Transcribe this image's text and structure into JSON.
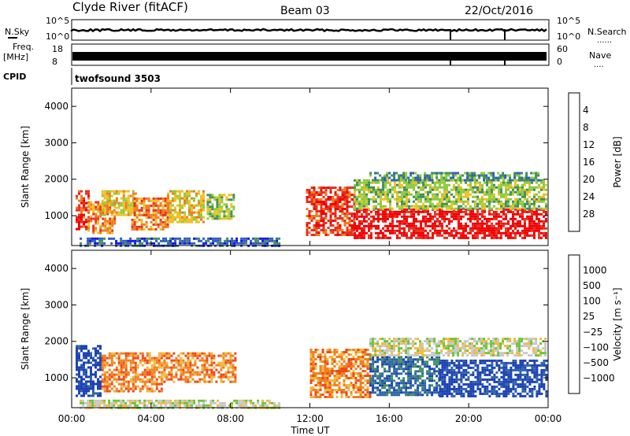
{
  "header": {
    "title": "Clyde River (fitACF)",
    "beam": "Beam 03",
    "date": "22/Oct/2016"
  },
  "strip_labels": {
    "nsky": "N.Sky",
    "nsearch": "N.Search",
    "freq": "Freq.",
    "freq_unit": "[MHz]",
    "nave": "Nave",
    "cpid": "CPID",
    "cpid_value": "twofsound 3503",
    "dotted": "......",
    "dotted_short": "...."
  },
  "strip_ticks": {
    "noise_left": [
      "10^5",
      "10^0"
    ],
    "noise_right": [
      "10^5",
      "10^0"
    ],
    "freq_left": [
      "18",
      "8"
    ],
    "nave_right": [
      "60",
      "0"
    ]
  },
  "chart_data": [
    {
      "type": "heatmap",
      "panel": "power",
      "ylabel": "Slant Range [km]",
      "xlabel": "",
      "x_ticks": [
        "00:00",
        "04:00",
        "08:00",
        "12:00",
        "16:00",
        "20:00",
        "00:00"
      ],
      "y_ticks": [
        1000,
        2000,
        3000,
        4000
      ],
      "x_range_hours": [
        0,
        24
      ],
      "y_range_km": [
        180,
        4500
      ],
      "colorbar": {
        "label": "Power [dB]",
        "ticks": [
          "4",
          "8",
          "12",
          "16",
          "20",
          "24",
          "28"
        ],
        "colors": [
          "#1414e6",
          "#2f5cbf",
          "#3f8f5a",
          "#8fca3c",
          "#f0c020",
          "#f07a20",
          "#e83020",
          "#f00000"
        ]
      },
      "regions": [
        {
          "t0": 0.2,
          "t1": 0.8,
          "r0": 600,
          "r1": 1700,
          "level": 6
        },
        {
          "t0": 0.8,
          "t1": 2.2,
          "r0": 500,
          "r1": 1400,
          "level": 5
        },
        {
          "t0": 1.5,
          "t1": 3.2,
          "r0": 1000,
          "r1": 1700,
          "level": 4
        },
        {
          "t0": 3.0,
          "t1": 4.8,
          "r0": 650,
          "r1": 1500,
          "level": 5
        },
        {
          "t0": 4.8,
          "t1": 6.6,
          "r0": 800,
          "r1": 1700,
          "level": 4
        },
        {
          "t0": 6.8,
          "t1": 8.2,
          "r0": 900,
          "r1": 1600,
          "level": 3
        },
        {
          "t0": 11.8,
          "t1": 14.2,
          "r0": 500,
          "r1": 1800,
          "level": 6
        },
        {
          "t0": 14.2,
          "t1": 23.9,
          "r0": 400,
          "r1": 1200,
          "level": 7
        },
        {
          "t0": 14.2,
          "t1": 23.9,
          "r0": 1200,
          "r1": 2000,
          "level": 3
        },
        {
          "t0": 15.0,
          "t1": 23.5,
          "r0": 2000,
          "r1": 2200,
          "level": 2
        },
        {
          "t0": 0.4,
          "t1": 10.5,
          "r0": 200,
          "r1": 400,
          "level": 1
        }
      ]
    },
    {
      "type": "heatmap",
      "panel": "velocity",
      "ylabel": "Slant Range [km]",
      "xlabel": "Time UT",
      "x_ticks": [
        "00:00",
        "04:00",
        "08:00",
        "12:00",
        "16:00",
        "20:00",
        "00:00"
      ],
      "y_ticks": [
        1000,
        2000,
        3000,
        4000
      ],
      "x_range_hours": [
        0,
        24
      ],
      "y_range_km": [
        180,
        4500
      ],
      "colorbar": {
        "label": "Velocity [m s⁻¹]",
        "ticks": [
          "1000",
          "500",
          "100",
          "25",
          "−25",
          "−100",
          "−500",
          "−1000"
        ],
        "colors": [
          "#1a3fb5",
          "#2c62a8",
          "#3f8f5a",
          "#6bc43a",
          "#c8c8c8",
          "#f0b840",
          "#f08020",
          "#f04818",
          "#f00000"
        ]
      },
      "regions": [
        {
          "t0": 0.2,
          "t1": 1.5,
          "r0": 500,
          "r1": 1900,
          "level": 0
        },
        {
          "t0": 1.5,
          "t1": 4.5,
          "r0": 600,
          "r1": 1700,
          "level": 6
        },
        {
          "t0": 4.5,
          "t1": 8.3,
          "r0": 900,
          "r1": 1700,
          "level": 6
        },
        {
          "t0": 12.0,
          "t1": 15.0,
          "r0": 500,
          "r1": 1800,
          "level": 6
        },
        {
          "t0": 15.0,
          "t1": 18.5,
          "r0": 500,
          "r1": 1600,
          "level": 1
        },
        {
          "t0": 18.5,
          "t1": 23.9,
          "r0": 500,
          "r1": 1500,
          "level": 0
        },
        {
          "t0": 15.0,
          "t1": 23.9,
          "r0": 1600,
          "r1": 2100,
          "level": 4
        },
        {
          "t0": 0.4,
          "t1": 10.5,
          "r0": 200,
          "r1": 400,
          "level": 4
        }
      ]
    }
  ]
}
